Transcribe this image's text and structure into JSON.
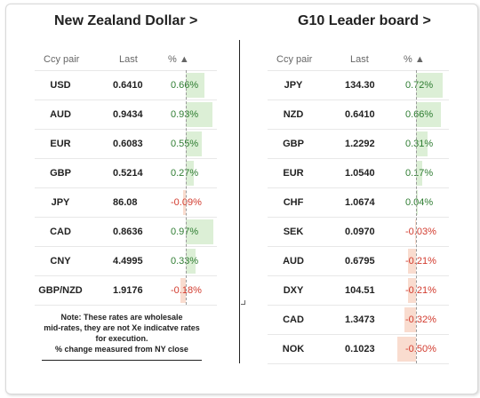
{
  "left_panel": {
    "title": "New Zealand Dollar >",
    "headers": {
      "pair": "Ccy pair",
      "last": "Last",
      "pct": "% ▲"
    },
    "rows": [
      {
        "pair": "USD",
        "last": "0.6410",
        "pct": "0.66%",
        "value": 0.66
      },
      {
        "pair": "AUD",
        "last": "0.9434",
        "pct": "0.93%",
        "value": 0.93
      },
      {
        "pair": "EUR",
        "last": "0.6083",
        "pct": "0.55%",
        "value": 0.55
      },
      {
        "pair": "GBP",
        "last": "0.5214",
        "pct": "0.27%",
        "value": 0.27
      },
      {
        "pair": "JPY",
        "last": "86.08",
        "pct": "-0.09%",
        "value": -0.09
      },
      {
        "pair": "CAD",
        "last": "0.8636",
        "pct": "0.97%",
        "value": 0.97
      },
      {
        "pair": "CNY",
        "last": "4.4995",
        "pct": "0.33%",
        "value": 0.33
      },
      {
        "pair": "GBP/NZD",
        "last": "1.9176",
        "pct": "-0.18%",
        "value": -0.18
      }
    ],
    "note_lines": [
      "Note: These rates are wholesale",
      "mid-rates, they are not Xe indicatve rates",
      "for execution.",
      "% change measured from NY close"
    ]
  },
  "right_panel": {
    "title": "G10 Leader board >",
    "headers": {
      "pair": "Ccy pair",
      "last": "Last",
      "pct": "% ▲"
    },
    "rows": [
      {
        "pair": "JPY",
        "last": "134.30",
        "pct": "0.72%",
        "value": 0.72
      },
      {
        "pair": "NZD",
        "last": "0.6410",
        "pct": "0.66%",
        "value": 0.66
      },
      {
        "pair": "GBP",
        "last": "1.2292",
        "pct": "0.31%",
        "value": 0.31
      },
      {
        "pair": "EUR",
        "last": "1.0540",
        "pct": "0.17%",
        "value": 0.17
      },
      {
        "pair": "CHF",
        "last": "1.0674",
        "pct": "0.04%",
        "value": 0.04
      },
      {
        "pair": "SEK",
        "last": "0.0970",
        "pct": "-0.03%",
        "value": -0.03
      },
      {
        "pair": "AUD",
        "last": "0.6795",
        "pct": "-0.21%",
        "value": -0.21
      },
      {
        "pair": "DXY",
        "last": "104.51",
        "pct": "-0.21%",
        "value": -0.21
      },
      {
        "pair": "CAD",
        "last": "1.3473",
        "pct": "-0.32%",
        "value": -0.32
      },
      {
        "pair": "NOK",
        "last": "0.1023",
        "pct": "-0.50%",
        "value": -0.5
      }
    ]
  },
  "colors": {
    "positive_bar": "#dcefd6",
    "negative_bar": "#f9dccf",
    "positive_text": "#2f7d32",
    "negative_text": "#d23b2e"
  }
}
